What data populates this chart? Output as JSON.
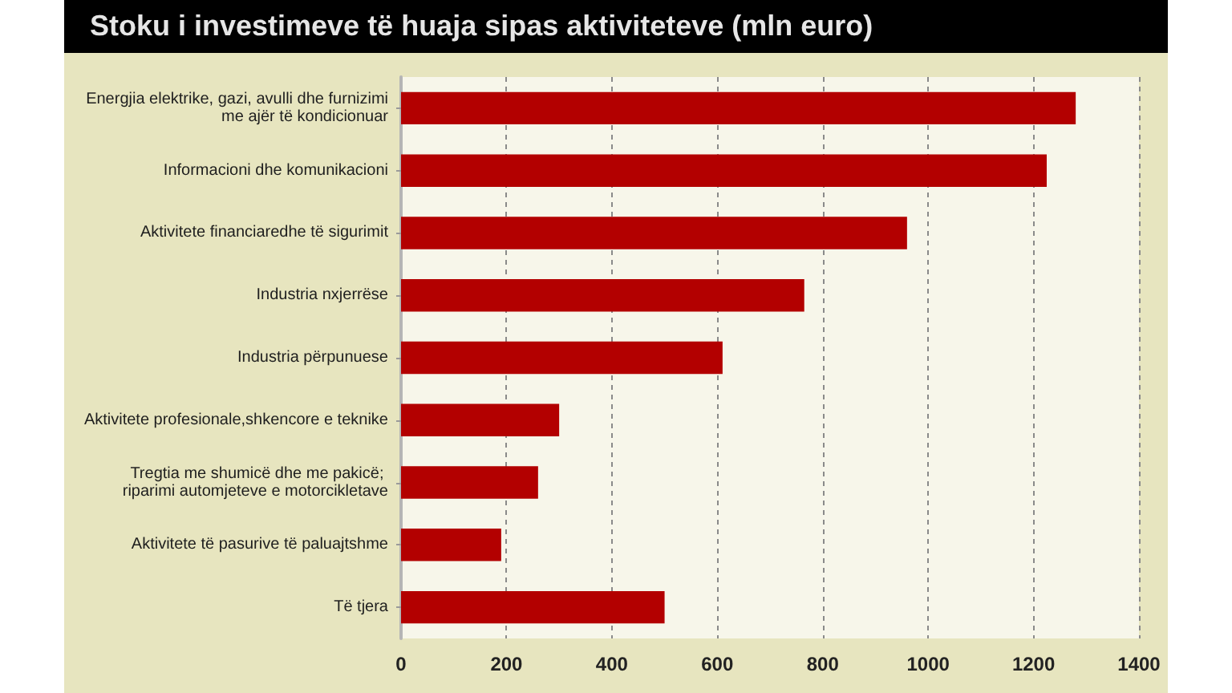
{
  "chart_data": {
    "type": "bar",
    "orientation": "horizontal",
    "title": "Stoku i investimeve të huaja sipas aktiviteteve (mln euro)",
    "categories": [
      "Energjia elektrike, gazi, avulli dhe furnizimi me ajër të kondicionuar",
      "Informacioni dhe komunikacioni",
      "Aktivitete financiaredhe të sigurimit",
      "Industria nxjerrëse",
      "Industria përpunuese",
      "Aktivitete profesionale,shkencore e teknike",
      "Tregtia me shumicë dhe me pakicë; riparimi automjeteve e motorcikletave",
      "Aktivitete të pasurive të paluajtshme",
      "Të tjera"
    ],
    "values": [
      1280,
      1225,
      960,
      765,
      610,
      300,
      260,
      190,
      500
    ],
    "color": "#b30000",
    "xlim": [
      0,
      1400
    ],
    "xticks": [
      0,
      200,
      400,
      600,
      800,
      1000,
      1200,
      1400
    ],
    "grid": "x"
  }
}
